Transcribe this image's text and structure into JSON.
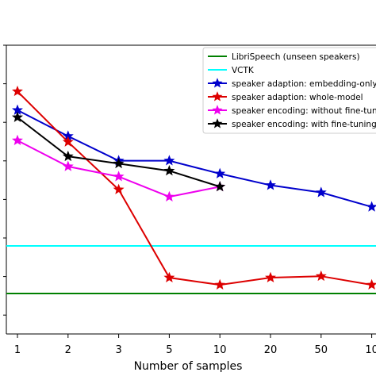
{
  "chart_data": {
    "type": "line",
    "title": "",
    "xlabel": "Number of samples",
    "ylabel": "",
    "categories": [
      "1",
      "2",
      "3",
      "5",
      "10",
      "20",
      "50",
      "10"
    ],
    "ylim": [
      0,
      1
    ],
    "grid": false,
    "legend_position": "top-right",
    "series": [
      {
        "name": "LibriSpeech (unseen speakers)",
        "color": "#008000",
        "marker": "none",
        "values": [
          0.14,
          0.14,
          0.14,
          0.14,
          0.14,
          0.14,
          0.14,
          0.14
        ]
      },
      {
        "name": "VCTK",
        "color": "#00ffff",
        "marker": "none",
        "values": [
          0.305,
          0.305,
          0.305,
          0.305,
          0.305,
          0.305,
          0.305,
          0.305
        ]
      },
      {
        "name": "speaker adaption: embedding-only",
        "color": "#0000cc",
        "marker": "star",
        "values": [
          0.775,
          0.685,
          0.6,
          0.6,
          0.555,
          0.515,
          0.49,
          0.44
        ]
      },
      {
        "name": "speaker adaption: whole-model",
        "color": "#dd0000",
        "marker": "star",
        "values": [
          0.84,
          0.665,
          0.5,
          0.195,
          0.17,
          0.195,
          0.2,
          0.17
        ]
      },
      {
        "name": "speaker encoding: without fine-tuning",
        "color": "#ee00ee",
        "marker": "star",
        "values": [
          0.67,
          0.58,
          0.545,
          0.475,
          0.51,
          null,
          null,
          null
        ]
      },
      {
        "name": "speaker encoding: with fine-tuning",
        "color": "#000000",
        "marker": "star",
        "values": [
          0.75,
          0.615,
          0.59,
          0.565,
          0.51,
          null,
          null,
          null
        ]
      }
    ]
  }
}
